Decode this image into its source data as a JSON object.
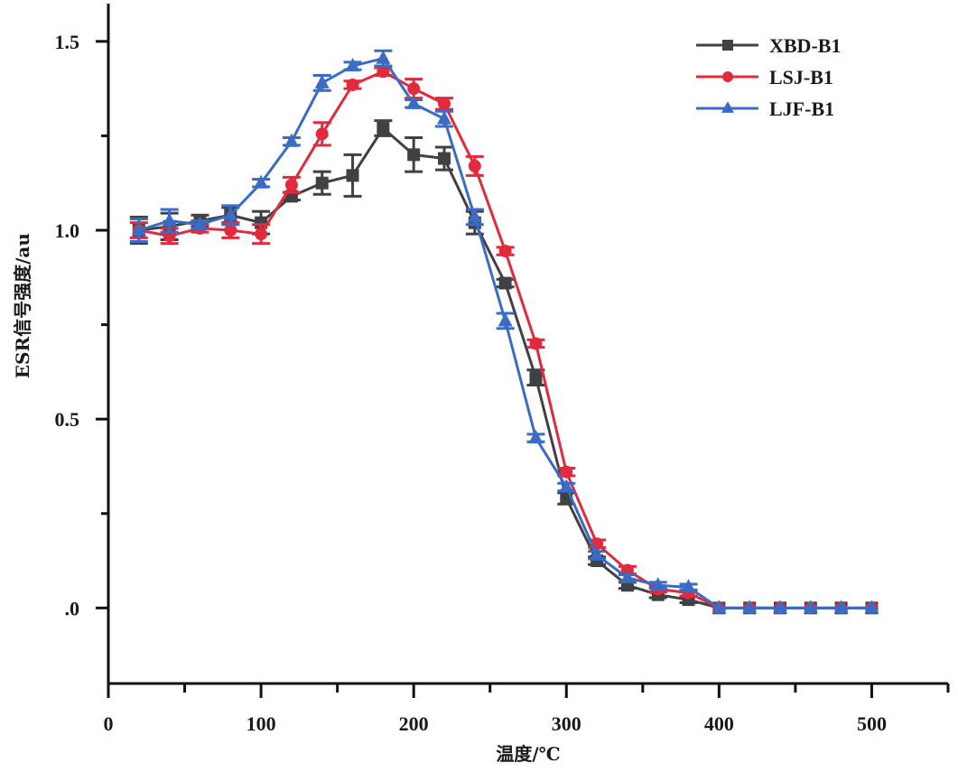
{
  "chart_data": {
    "type": "line",
    "title": "",
    "xlabel": "温度/℃",
    "ylabel": "ESR信号强度/au",
    "xlim": [
      0,
      550
    ],
    "ylim": [
      -0.2,
      1.6
    ],
    "x_ticks": [
      0,
      100,
      200,
      300,
      400,
      500
    ],
    "x_tick_labels": [
      "0",
      "100",
      "200",
      "300",
      "400",
      "500"
    ],
    "x_minor_ticks": [
      50,
      150,
      250,
      350,
      450,
      550
    ],
    "y_ticks": [
      0.0,
      0.5,
      1.0,
      1.5
    ],
    "y_tick_labels": [
      ".0",
      "0.5",
      "1.0",
      "1.5"
    ],
    "y_minor_ticks": [
      0.25,
      0.75,
      1.25
    ],
    "grid": false,
    "legend_position": "top-right",
    "x": [
      20,
      40,
      60,
      80,
      100,
      120,
      140,
      160,
      180,
      200,
      220,
      240,
      260,
      280,
      300,
      320,
      340,
      360,
      380,
      400,
      420,
      440,
      460,
      480,
      500
    ],
    "series": [
      {
        "name": "XBD-B1",
        "color": "#3f4144",
        "marker": "square",
        "values": [
          1.0,
          1.01,
          1.025,
          1.04,
          1.02,
          1.09,
          1.125,
          1.145,
          1.27,
          1.2,
          1.19,
          1.02,
          0.86,
          0.61,
          0.29,
          0.125,
          0.06,
          0.035,
          0.022,
          0,
          0,
          0,
          0,
          0,
          0
        ],
        "errors": [
          0.035,
          0.035,
          0.015,
          0.02,
          0.03,
          0.01,
          0.03,
          0.055,
          0.02,
          0.045,
          0.03,
          0.03,
          0.01,
          0.02,
          0.015,
          0.01,
          0.008,
          0.008,
          0.008,
          0,
          0,
          0,
          0,
          0,
          0
        ]
      },
      {
        "name": "LSJ-B1",
        "color": "#e32a3c",
        "marker": "circle",
        "values": [
          1.0,
          0.985,
          1.005,
          1.0,
          0.99,
          1.12,
          1.255,
          1.385,
          1.42,
          1.375,
          1.335,
          1.17,
          0.945,
          0.7,
          0.36,
          0.17,
          0.1,
          0.05,
          0.04,
          0,
          0,
          0,
          0,
          0,
          0
        ],
        "errors": [
          0.02,
          0.02,
          0.01,
          0.02,
          0.025,
          0.02,
          0.03,
          0.01,
          0.01,
          0.025,
          0.015,
          0.025,
          0.01,
          0.01,
          0.01,
          0.01,
          0.01,
          0.008,
          0.008,
          0,
          0,
          0,
          0,
          0,
          0
        ]
      },
      {
        "name": "LJF-B1",
        "color": "#3a6bc5",
        "marker": "triangle",
        "values": [
          1.0,
          1.025,
          1.015,
          1.04,
          1.125,
          1.235,
          1.39,
          1.435,
          1.455,
          1.335,
          1.295,
          1.035,
          0.76,
          0.45,
          0.32,
          0.14,
          0.08,
          0.06,
          0.055,
          0,
          0,
          0,
          0,
          0,
          0
        ],
        "errors": [
          0.03,
          0.03,
          0.01,
          0.025,
          0.01,
          0.01,
          0.02,
          0.01,
          0.02,
          0.01,
          0.02,
          0.02,
          0.02,
          0.01,
          0.01,
          0.01,
          0.008,
          0.008,
          0.008,
          0,
          0,
          0,
          0,
          0,
          0
        ]
      }
    ]
  }
}
